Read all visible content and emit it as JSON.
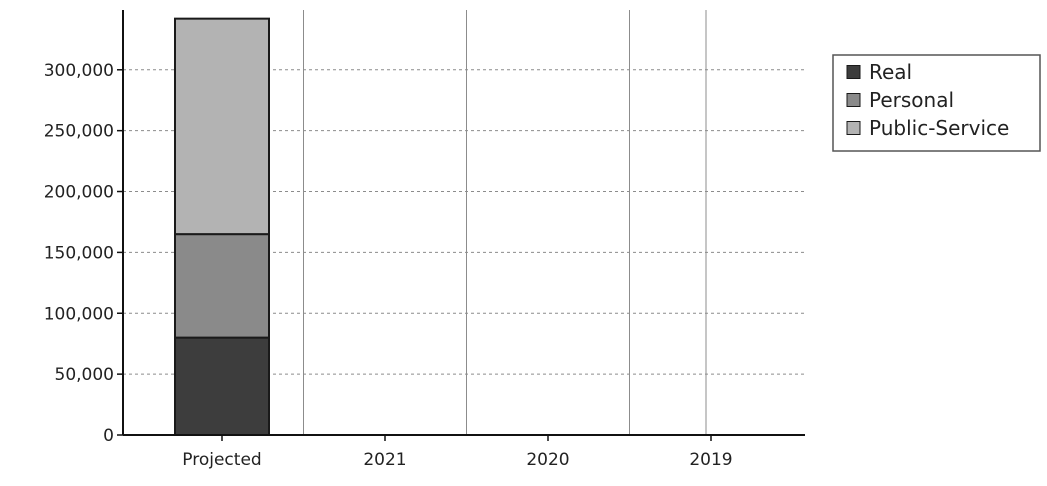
{
  "chart_data": {
    "type": "bar",
    "stacked": true,
    "title": "",
    "xlabel": "",
    "ylabel": "",
    "categories": [
      "Projected",
      "2021",
      "2020",
      "2019"
    ],
    "ylim": [
      0,
      345000
    ],
    "yticks": [
      0,
      50000,
      100000,
      150000,
      200000,
      250000,
      300000
    ],
    "ytick_labels": [
      "0",
      "50,000",
      "100,000",
      "150,000",
      "200,000",
      "250,000",
      "300,000"
    ],
    "grid": true,
    "legend_position": "top-right",
    "series": [
      {
        "name": "Real",
        "color": "#3d3d3d",
        "values": [
          80000,
          0,
          0,
          0
        ]
      },
      {
        "name": "Personal",
        "color": "#8a8a8a",
        "values": [
          85000,
          0,
          0,
          0
        ]
      },
      {
        "name": "Public-Service",
        "color": "#b3b3b3",
        "values": [
          177000,
          0,
          0,
          0
        ]
      }
    ]
  }
}
